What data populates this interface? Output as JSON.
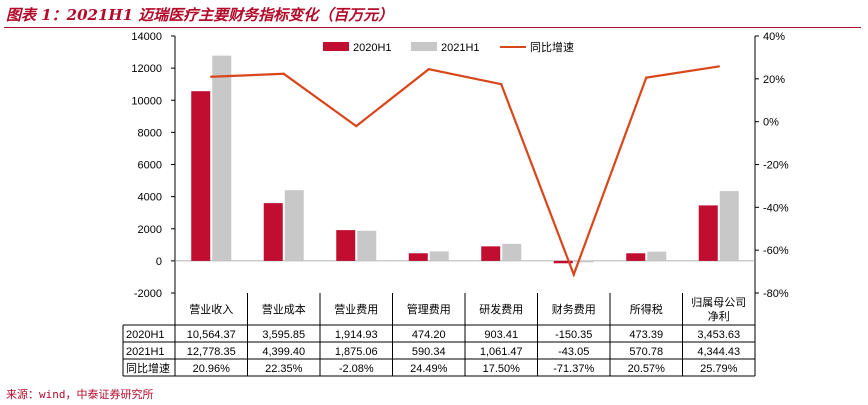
{
  "title": "图表 1：2021H1 迈瑞医疗主要财务指标变化（百万元）",
  "source": "来源：wind，中泰证券研究所",
  "colors": {
    "accent": "#b40a2a",
    "series_2020": "#c00d30",
    "series_2021": "#c8c8c8",
    "growth_line": "#d9461a"
  },
  "chart_data": {
    "type": "bar",
    "categories": [
      "营业收入",
      "营业成本",
      "营业费用",
      "管理费用",
      "研发费用",
      "财务费用",
      "所得税",
      "归属母公司净利"
    ],
    "category_lines": [
      [
        "营业收入"
      ],
      [
        "营业成本"
      ],
      [
        "营业费用"
      ],
      [
        "管理费用"
      ],
      [
        "研发费用"
      ],
      [
        "财务费用"
      ],
      [
        "所得税"
      ],
      [
        "归属母公司",
        "净利"
      ]
    ],
    "series": [
      {
        "name": "2020H1",
        "type": "bar",
        "axis": "left",
        "values": [
          10564.37,
          3595.85,
          1914.93,
          474.2,
          903.41,
          -150.35,
          473.39,
          3453.63
        ]
      },
      {
        "name": "2021H1",
        "type": "bar",
        "axis": "left",
        "values": [
          12778.35,
          4399.4,
          1875.06,
          590.34,
          1061.47,
          -43.05,
          570.78,
          4344.43
        ]
      },
      {
        "name": "同比增速",
        "type": "line",
        "axis": "right",
        "values": [
          20.96,
          22.35,
          -2.08,
          24.49,
          17.5,
          -71.37,
          20.57,
          25.79
        ]
      }
    ],
    "y_left": {
      "min": -2000,
      "max": 14000,
      "ticks": [
        -2000,
        0,
        2000,
        4000,
        6000,
        8000,
        10000,
        12000,
        14000
      ]
    },
    "y_right": {
      "min": -80,
      "max": 40,
      "ticks": [
        -80,
        -60,
        -40,
        -20,
        0,
        20,
        40
      ],
      "unit": "%"
    },
    "legend": {
      "position": "top-center"
    },
    "grid": false,
    "table": {
      "rows": [
        {
          "label": "2020H1",
          "cells": [
            "10,564.37",
            "3,595.85",
            "1,914.93",
            "474.20",
            "903.41",
            "-150.35",
            "473.39",
            "3,453.63"
          ]
        },
        {
          "label": "2021H1",
          "cells": [
            "12,778.35",
            "4,399.40",
            "1,875.06",
            "590.34",
            "1,061.47",
            "-43.05",
            "570.78",
            "4,344.43"
          ]
        },
        {
          "label": "同比增速",
          "cells": [
            "20.96%",
            "22.35%",
            "-2.08%",
            "24.49%",
            "17.50%",
            "-71.37%",
            "20.57%",
            "25.79%"
          ]
        }
      ]
    }
  }
}
